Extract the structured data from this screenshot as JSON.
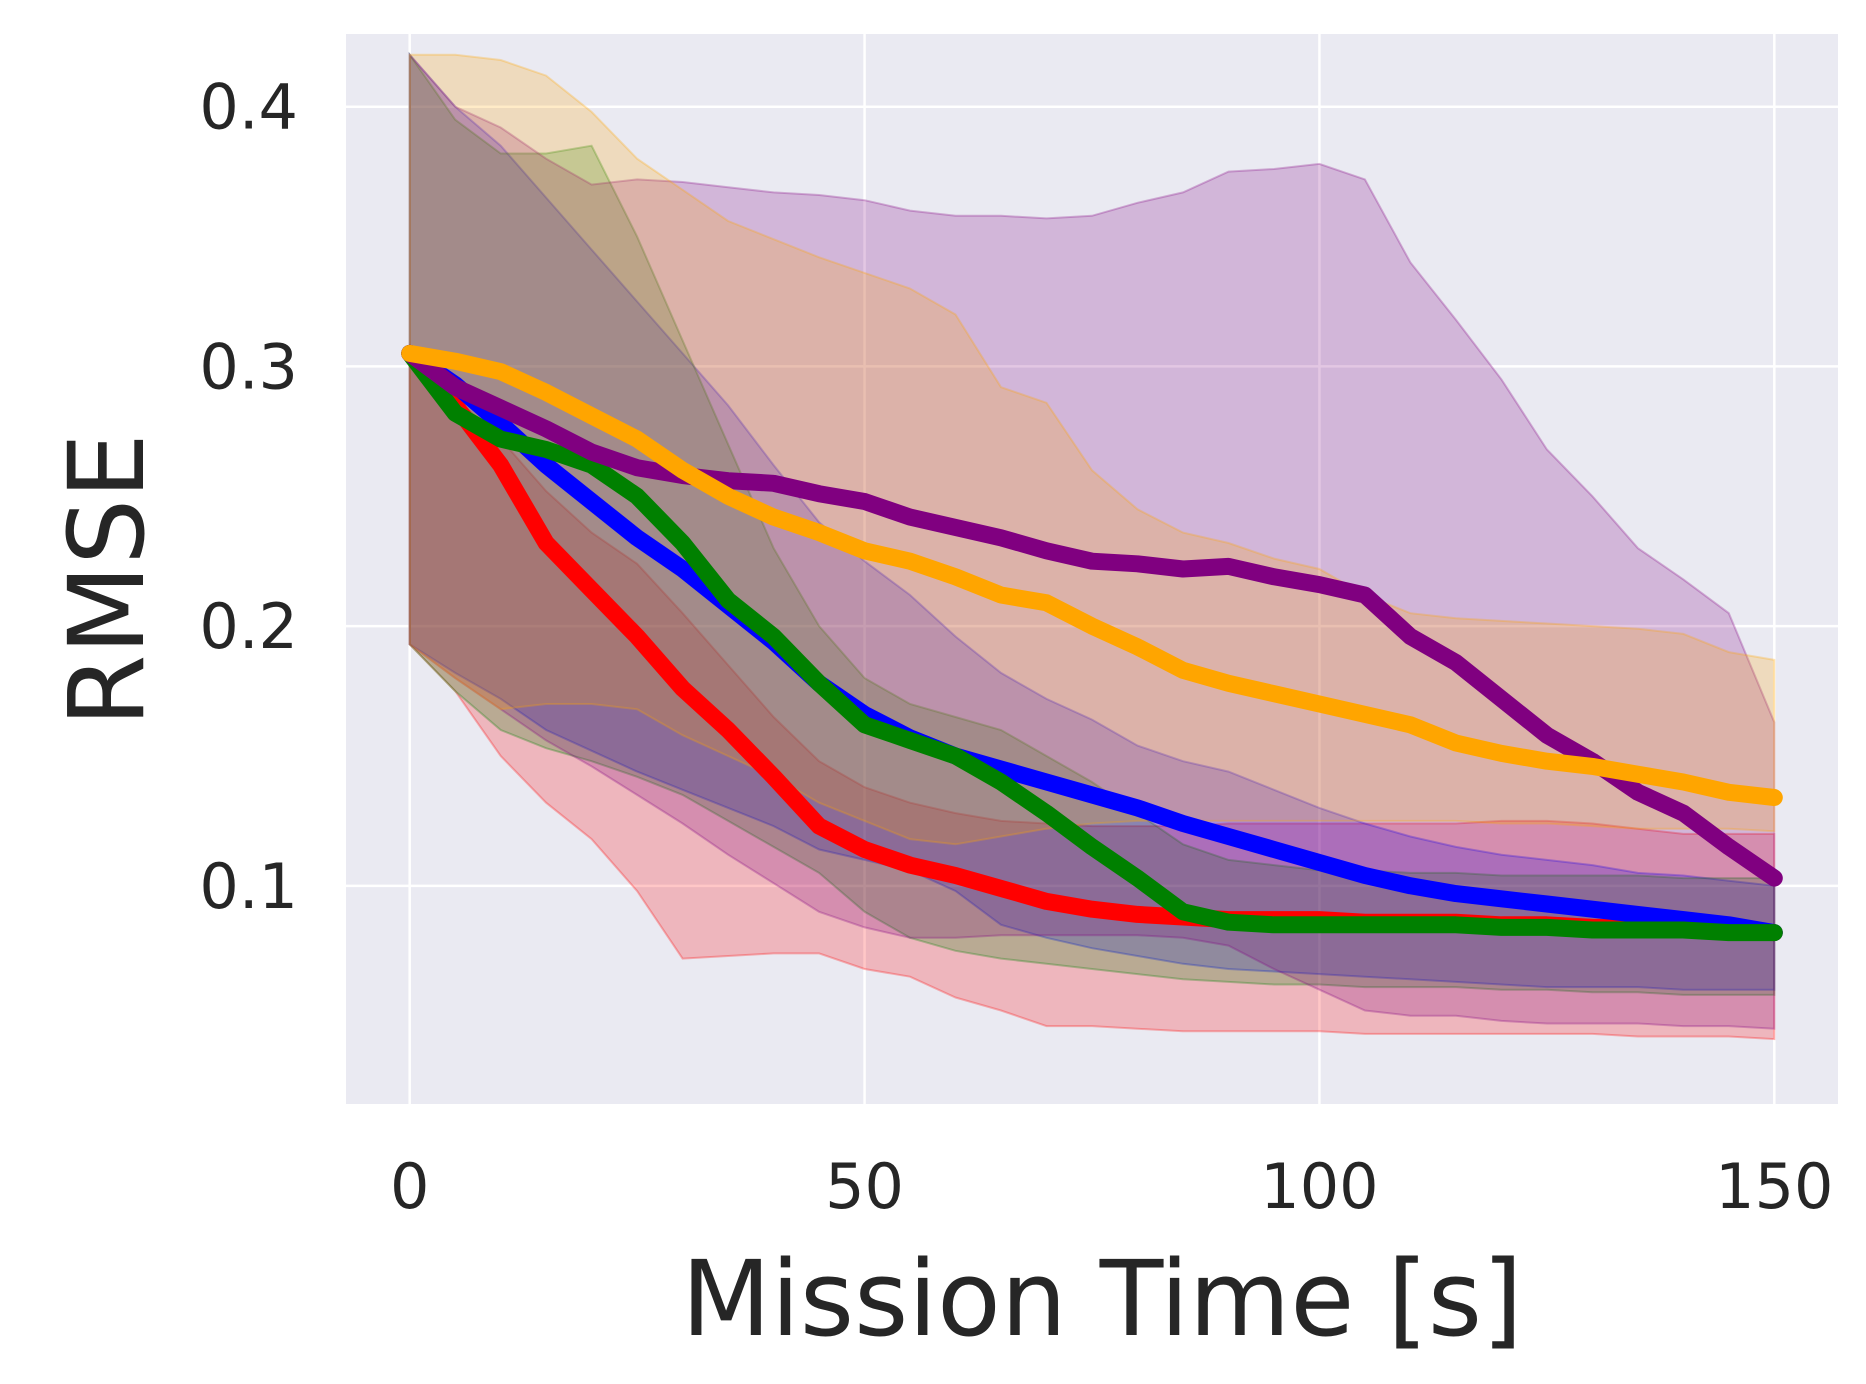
{
  "chart_data": {
    "type": "line",
    "title": "",
    "xlabel": "Mission Time [s]",
    "ylabel": "RMSE",
    "xlim": [
      -7,
      157
    ],
    "ylim": [
      0.016,
      0.428
    ],
    "xticks": [
      0,
      50,
      100,
      150
    ],
    "xtick_labels": [
      "0",
      "50",
      "100",
      "150"
    ],
    "yticks": [
      0.1,
      0.2,
      0.3,
      0.4
    ],
    "ytick_labels": [
      "0.1",
      "0.2",
      "0.3",
      "0.4"
    ],
    "grid": true,
    "background": "#eaeaf2",
    "x": [
      0,
      5,
      10,
      15,
      20,
      25,
      30,
      35,
      40,
      45,
      50,
      55,
      60,
      65,
      70,
      75,
      80,
      85,
      90,
      95,
      100,
      105,
      110,
      115,
      120,
      125,
      130,
      135,
      140,
      145,
      150
    ],
    "series": [
      {
        "name": "red",
        "color": "#ff0000",
        "values": [
          0.305,
          0.285,
          0.262,
          0.232,
          0.214,
          0.196,
          0.176,
          0.16,
          0.142,
          0.123,
          0.114,
          0.108,
          0.104,
          0.099,
          0.094,
          0.091,
          0.089,
          0.088,
          0.087,
          0.087,
          0.087,
          0.086,
          0.086,
          0.086,
          0.085,
          0.085,
          0.084,
          0.084,
          0.083,
          0.083,
          0.082
        ],
        "upper": [
          0.305,
          0.288,
          0.272,
          0.252,
          0.236,
          0.224,
          0.205,
          0.185,
          0.165,
          0.148,
          0.138,
          0.132,
          0.128,
          0.125,
          0.124,
          0.123,
          0.123,
          0.123,
          0.124,
          0.124,
          0.124,
          0.124,
          0.124,
          0.124,
          0.125,
          0.125,
          0.124,
          0.122,
          0.12,
          0.12,
          0.12
        ],
        "lower": [
          0.193,
          0.175,
          0.15,
          0.132,
          0.118,
          0.098,
          0.072,
          0.073,
          0.074,
          0.074,
          0.068,
          0.065,
          0.057,
          0.052,
          0.046,
          0.046,
          0.045,
          0.044,
          0.044,
          0.044,
          0.044,
          0.043,
          0.043,
          0.043,
          0.043,
          0.043,
          0.043,
          0.042,
          0.042,
          0.042,
          0.041
        ]
      },
      {
        "name": "blue",
        "color": "#0000ff",
        "values": [
          0.305,
          0.293,
          0.278,
          0.262,
          0.248,
          0.234,
          0.222,
          0.208,
          0.194,
          0.178,
          0.166,
          0.157,
          0.15,
          0.145,
          0.14,
          0.135,
          0.13,
          0.124,
          0.119,
          0.114,
          0.109,
          0.104,
          0.1,
          0.097,
          0.095,
          0.093,
          0.091,
          0.089,
          0.087,
          0.085,
          0.082
        ],
        "upper": [
          0.42,
          0.4,
          0.385,
          0.365,
          0.345,
          0.325,
          0.305,
          0.285,
          0.262,
          0.24,
          0.225,
          0.212,
          0.196,
          0.182,
          0.172,
          0.164,
          0.154,
          0.148,
          0.144,
          0.137,
          0.13,
          0.124,
          0.119,
          0.115,
          0.112,
          0.11,
          0.108,
          0.105,
          0.104,
          0.102,
          0.1
        ],
        "lower": [
          0.193,
          0.182,
          0.172,
          0.16,
          0.152,
          0.144,
          0.137,
          0.13,
          0.123,
          0.114,
          0.11,
          0.106,
          0.098,
          0.085,
          0.08,
          0.076,
          0.073,
          0.07,
          0.068,
          0.067,
          0.066,
          0.065,
          0.064,
          0.063,
          0.062,
          0.061,
          0.061,
          0.061,
          0.06,
          0.06,
          0.06
        ]
      },
      {
        "name": "green",
        "color": "#008000",
        "values": [
          0.305,
          0.282,
          0.272,
          0.268,
          0.262,
          0.25,
          0.232,
          0.21,
          0.196,
          0.178,
          0.162,
          0.156,
          0.15,
          0.14,
          0.128,
          0.115,
          0.103,
          0.09,
          0.086,
          0.085,
          0.085,
          0.085,
          0.085,
          0.085,
          0.084,
          0.084,
          0.083,
          0.083,
          0.083,
          0.082,
          0.082
        ],
        "upper": [
          0.42,
          0.395,
          0.382,
          0.382,
          0.385,
          0.35,
          0.31,
          0.27,
          0.23,
          0.2,
          0.18,
          0.17,
          0.165,
          0.16,
          0.15,
          0.14,
          0.128,
          0.116,
          0.11,
          0.108,
          0.106,
          0.106,
          0.105,
          0.105,
          0.104,
          0.104,
          0.104,
          0.104,
          0.103,
          0.103,
          0.103
        ],
        "lower": [
          0.193,
          0.175,
          0.16,
          0.153,
          0.148,
          0.142,
          0.135,
          0.125,
          0.115,
          0.105,
          0.09,
          0.08,
          0.075,
          0.072,
          0.07,
          0.068,
          0.066,
          0.064,
          0.063,
          0.062,
          0.062,
          0.061,
          0.061,
          0.061,
          0.06,
          0.06,
          0.059,
          0.059,
          0.058,
          0.058,
          0.058
        ]
      },
      {
        "name": "purple",
        "color": "#800080",
        "values": [
          0.305,
          0.292,
          0.284,
          0.276,
          0.267,
          0.261,
          0.258,
          0.256,
          0.255,
          0.251,
          0.248,
          0.242,
          0.238,
          0.234,
          0.229,
          0.225,
          0.224,
          0.222,
          0.223,
          0.219,
          0.216,
          0.212,
          0.196,
          0.186,
          0.172,
          0.158,
          0.148,
          0.136,
          0.128,
          0.115,
          0.103
        ],
        "upper": [
          0.42,
          0.4,
          0.392,
          0.38,
          0.37,
          0.372,
          0.371,
          0.369,
          0.367,
          0.366,
          0.364,
          0.36,
          0.358,
          0.358,
          0.357,
          0.358,
          0.363,
          0.367,
          0.375,
          0.376,
          0.378,
          0.372,
          0.34,
          0.318,
          0.295,
          0.268,
          0.25,
          0.23,
          0.218,
          0.205,
          0.163
        ],
        "lower": [
          0.193,
          0.18,
          0.168,
          0.156,
          0.146,
          0.135,
          0.124,
          0.112,
          0.101,
          0.09,
          0.084,
          0.08,
          0.08,
          0.081,
          0.081,
          0.081,
          0.081,
          0.08,
          0.077,
          0.068,
          0.06,
          0.052,
          0.05,
          0.05,
          0.048,
          0.047,
          0.047,
          0.047,
          0.046,
          0.046,
          0.045
        ]
      },
      {
        "name": "orange",
        "color": "#ffa500",
        "values": [
          0.305,
          0.302,
          0.298,
          0.29,
          0.281,
          0.272,
          0.26,
          0.25,
          0.242,
          0.236,
          0.229,
          0.225,
          0.219,
          0.212,
          0.209,
          0.2,
          0.192,
          0.183,
          0.178,
          0.174,
          0.17,
          0.166,
          0.162,
          0.155,
          0.151,
          0.148,
          0.146,
          0.143,
          0.14,
          0.136,
          0.134
        ],
        "upper": [
          0.42,
          0.42,
          0.418,
          0.412,
          0.398,
          0.38,
          0.368,
          0.356,
          0.349,
          0.342,
          0.336,
          0.33,
          0.32,
          0.292,
          0.286,
          0.26,
          0.245,
          0.236,
          0.232,
          0.226,
          0.222,
          0.212,
          0.205,
          0.203,
          0.202,
          0.201,
          0.2,
          0.199,
          0.197,
          0.19,
          0.187
        ],
        "lower": [
          0.193,
          0.18,
          0.168,
          0.17,
          0.17,
          0.168,
          0.158,
          0.15,
          0.142,
          0.132,
          0.125,
          0.118,
          0.116,
          0.119,
          0.122,
          0.124,
          0.125,
          0.125,
          0.125,
          0.125,
          0.125,
          0.125,
          0.125,
          0.125,
          0.124,
          0.124,
          0.123,
          0.122,
          0.122,
          0.122,
          0.121
        ]
      }
    ]
  }
}
